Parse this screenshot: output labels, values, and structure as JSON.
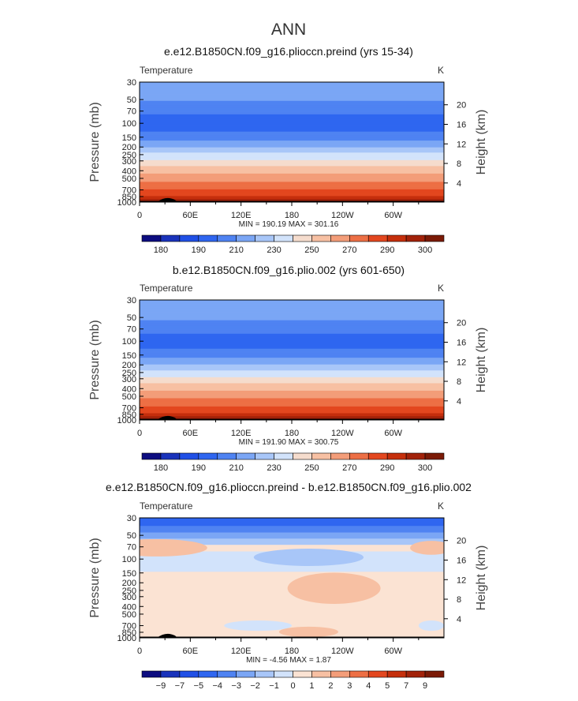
{
  "page": {
    "title": "ANN"
  },
  "chart_data": [
    {
      "type": "heatmap",
      "title": "e.e12.B1850CN.f09_g16.plioccn.preind (yrs 15-34)",
      "subtitle_left": "Temperature",
      "units": "K",
      "xlabel": "",
      "ylabel": "Pressure (mb)",
      "ylabel_right": "Height (km)",
      "x_ticks": [
        "0",
        "60E",
        "120E",
        "180",
        "120W",
        "60W"
      ],
      "x_tick_values": [
        0,
        60,
        120,
        180,
        240,
        300
      ],
      "xlim": [
        0,
        360
      ],
      "y_ticks": [
        "30",
        "50",
        "70",
        "100",
        "150",
        "200",
        "250",
        "300",
        "400",
        "500",
        "700",
        "850",
        "1000"
      ],
      "y_tick_values": [
        30,
        50,
        70,
        100,
        150,
        200,
        250,
        300,
        400,
        500,
        700,
        850,
        1000
      ],
      "ylim": [
        30,
        1000
      ],
      "y_scale": "log",
      "height_ticks": [
        "4",
        "8",
        "12",
        "16",
        "20"
      ],
      "height_tick_values": [
        4,
        8,
        12,
        16,
        20
      ],
      "stats": "MIN = 190.19   MAX = 301.16",
      "min": 190.19,
      "max": 301.16,
      "colorbar": {
        "labels": [
          "180",
          "190",
          "210",
          "230",
          "250",
          "270",
          "290",
          "300"
        ],
        "levels": [
          180,
          185,
          190,
          200,
          210,
          220,
          230,
          240,
          250,
          260,
          270,
          280,
          290,
          295,
          300
        ],
        "colors": [
          "#0d0d80",
          "#1a33bb",
          "#2050e6",
          "#2f66f0",
          "#4f83f2",
          "#7ba6f5",
          "#a8c6f8",
          "#d2e3fb",
          "#f5dccd",
          "#f7c0a3",
          "#f39d79",
          "#ed6f45",
          "#e3471f",
          "#c52f0c",
          "#a2220a",
          "#7b1a06"
        ]
      },
      "profile": [
        [
          30,
          218
        ],
        [
          40,
          214
        ],
        [
          50,
          211
        ],
        [
          60,
          207
        ],
        [
          70,
          203
        ],
        [
          80,
          199
        ],
        [
          100,
          196
        ],
        [
          120,
          198
        ],
        [
          150,
          206
        ],
        [
          180,
          214
        ],
        [
          200,
          220
        ],
        [
          230,
          228
        ],
        [
          250,
          233
        ],
        [
          300,
          241
        ],
        [
          350,
          250
        ],
        [
          400,
          256
        ],
        [
          500,
          266
        ],
        [
          600,
          274
        ],
        [
          700,
          281
        ],
        [
          800,
          287
        ],
        [
          850,
          291
        ],
        [
          925,
          296
        ],
        [
          1000,
          299
        ]
      ]
    },
    {
      "type": "heatmap",
      "title": "b.e12.B1850CN.f09_g16.plio.002 (yrs 601-650)",
      "subtitle_left": "Temperature",
      "units": "K",
      "xlabel": "",
      "ylabel": "Pressure (mb)",
      "ylabel_right": "Height (km)",
      "x_ticks": [
        "0",
        "60E",
        "120E",
        "180",
        "120W",
        "60W"
      ],
      "x_tick_values": [
        0,
        60,
        120,
        180,
        240,
        300
      ],
      "xlim": [
        0,
        360
      ],
      "y_ticks": [
        "30",
        "50",
        "70",
        "100",
        "150",
        "200",
        "250",
        "300",
        "400",
        "500",
        "700",
        "850",
        "1000"
      ],
      "y_tick_values": [
        30,
        50,
        70,
        100,
        150,
        200,
        250,
        300,
        400,
        500,
        700,
        850,
        1000
      ],
      "ylim": [
        30,
        1000
      ],
      "y_scale": "log",
      "height_ticks": [
        "4",
        "8",
        "12",
        "16",
        "20"
      ],
      "height_tick_values": [
        4,
        8,
        12,
        16,
        20
      ],
      "stats": "MIN = 191.90   MAX = 300.75",
      "min": 191.9,
      "max": 300.75,
      "colorbar": {
        "labels": [
          "180",
          "190",
          "210",
          "230",
          "250",
          "270",
          "290",
          "300"
        ],
        "levels": [
          180,
          185,
          190,
          200,
          210,
          220,
          230,
          240,
          250,
          260,
          270,
          280,
          290,
          295,
          300
        ],
        "colors": [
          "#0d0d80",
          "#1a33bb",
          "#2050e6",
          "#2f66f0",
          "#4f83f2",
          "#7ba6f5",
          "#a8c6f8",
          "#d2e3fb",
          "#f5dccd",
          "#f7c0a3",
          "#f39d79",
          "#ed6f45",
          "#e3471f",
          "#c52f0c",
          "#a2220a",
          "#7b1a06"
        ]
      },
      "profile": [
        [
          30,
          219
        ],
        [
          40,
          215
        ],
        [
          50,
          212
        ],
        [
          60,
          208
        ],
        [
          70,
          204
        ],
        [
          80,
          200
        ],
        [
          100,
          197
        ],
        [
          120,
          199
        ],
        [
          150,
          207
        ],
        [
          180,
          215
        ],
        [
          200,
          221
        ],
        [
          230,
          229
        ],
        [
          250,
          234
        ],
        [
          300,
          242
        ],
        [
          350,
          251
        ],
        [
          400,
          257
        ],
        [
          500,
          267
        ],
        [
          600,
          275
        ],
        [
          700,
          282
        ],
        [
          800,
          288
        ],
        [
          850,
          292
        ],
        [
          925,
          296
        ],
        [
          1000,
          299
        ]
      ]
    },
    {
      "type": "heatmap",
      "title": "e.e12.B1850CN.f09_g16.plioccn.preind - b.e12.B1850CN.f09_g16.plio.002",
      "subtitle_left": "Temperature",
      "units": "K",
      "xlabel": "",
      "ylabel": "Pressure (mb)",
      "ylabel_right": "Height (km)",
      "x_ticks": [
        "0",
        "60E",
        "120E",
        "180",
        "120W",
        "60W"
      ],
      "x_tick_values": [
        0,
        60,
        120,
        180,
        240,
        300
      ],
      "xlim": [
        0,
        360
      ],
      "y_ticks": [
        "30",
        "50",
        "70",
        "100",
        "150",
        "200",
        "250",
        "300",
        "400",
        "500",
        "700",
        "850",
        "1000"
      ],
      "y_tick_values": [
        30,
        50,
        70,
        100,
        150,
        200,
        250,
        300,
        400,
        500,
        700,
        850,
        1000
      ],
      "ylim": [
        30,
        1000
      ],
      "y_scale": "log",
      "height_ticks": [
        "4",
        "8",
        "12",
        "16",
        "20"
      ],
      "height_tick_values": [
        4,
        8,
        12,
        16,
        20
      ],
      "stats": "MIN =  -4.56   MAX =   1.87",
      "min": -4.56,
      "max": 1.87,
      "colorbar": {
        "labels": [
          "-9",
          "-7",
          "-5",
          "-4",
          "-3",
          "-2",
          "-1",
          "0",
          "1",
          "2",
          "3",
          "4",
          "5",
          "7",
          "9"
        ],
        "levels": [
          -9,
          -7,
          -5,
          -4,
          -3,
          -2,
          -1,
          0,
          1,
          2,
          3,
          4,
          5,
          7,
          9
        ],
        "colors": [
          "#0d0d80",
          "#1a33bb",
          "#2050e6",
          "#2f66f0",
          "#4f83f2",
          "#7ba6f5",
          "#a8c6f8",
          "#d2e3fb",
          "#fbe3d3",
          "#f7c0a3",
          "#f39d79",
          "#ed6f45",
          "#e3471f",
          "#c52f0c",
          "#a2220a",
          "#7b1a06"
        ]
      },
      "bands": [
        {
          "p_top": 30,
          "p_bottom": 38,
          "value": -4.2
        },
        {
          "p_top": 38,
          "p_bottom": 46,
          "value": -3.5
        },
        {
          "p_top": 46,
          "p_bottom": 55,
          "value": -2.5
        },
        {
          "p_top": 55,
          "p_bottom": 66,
          "value": -1.5
        },
        {
          "p_top": 66,
          "p_bottom": 80,
          "value": 0.5
        },
        {
          "p_top": 80,
          "p_bottom": 145,
          "value": -0.5
        },
        {
          "p_top": 145,
          "p_bottom": 1000,
          "value": 0.5
        }
      ],
      "blobs": [
        {
          "lon": 200,
          "p": 95,
          "dlon": 65,
          "dlogp": 0.05,
          "value": -1.5
        },
        {
          "lon": 230,
          "p": 235,
          "dlon": 55,
          "dlogp": 0.09,
          "value": 1.5
        },
        {
          "lon": 20,
          "p": 72,
          "dlon": 60,
          "dlogp": 0.05,
          "value": 1.5
        },
        {
          "lon": 345,
          "p": 72,
          "dlon": 25,
          "dlogp": 0.04,
          "value": 1.5
        },
        {
          "lon": 140,
          "p": 700,
          "dlon": 40,
          "dlogp": 0.03,
          "value": -0.5
        },
        {
          "lon": 200,
          "p": 840,
          "dlon": 35,
          "dlogp": 0.03,
          "value": 1.5
        },
        {
          "lon": 345,
          "p": 700,
          "dlon": 15,
          "dlogp": 0.03,
          "value": -0.5
        }
      ]
    }
  ]
}
